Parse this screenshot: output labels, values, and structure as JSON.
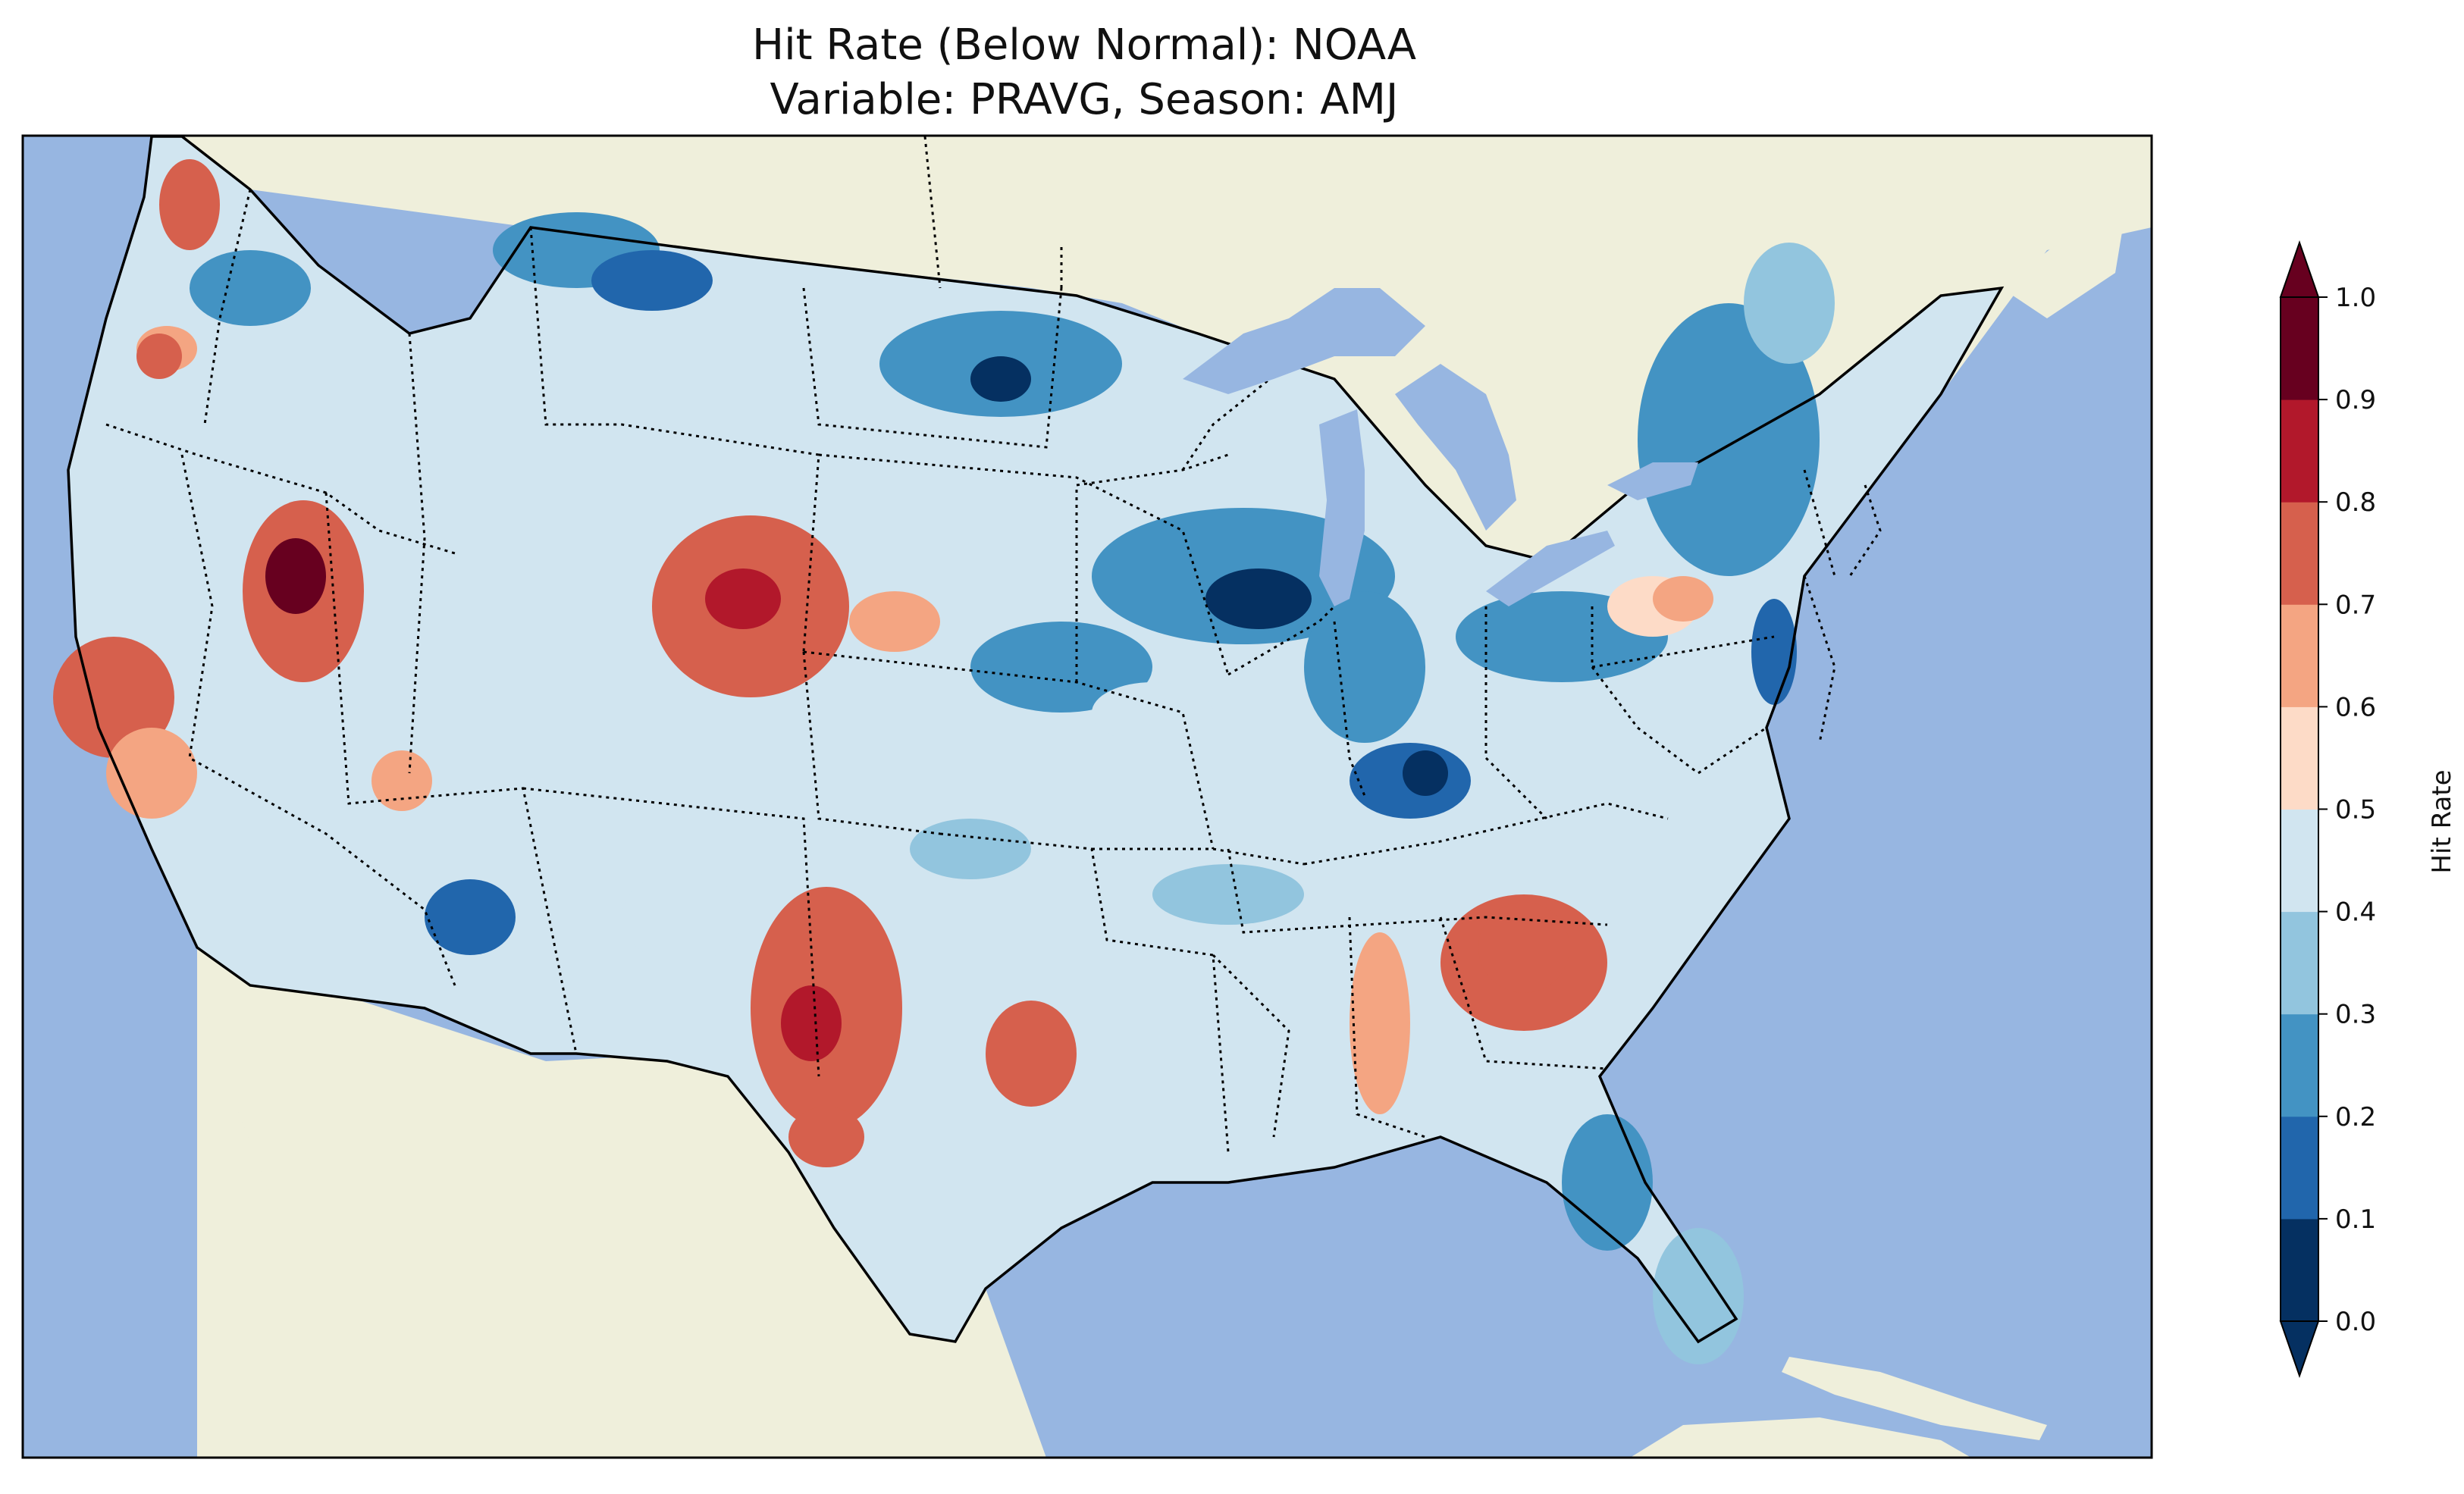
{
  "title": {
    "line1": "Hit Rate (Below Normal): NOAA",
    "line2": "Variable: PRAVG, Season: AMJ"
  },
  "colorbar": {
    "label": "Hit Rate",
    "ticks": [
      "0.0",
      "0.1",
      "0.2",
      "0.3",
      "0.4",
      "0.5",
      "0.6",
      "0.7",
      "0.8",
      "0.9",
      "1.0"
    ],
    "bins": [
      {
        "range": [
          0.0,
          0.1
        ],
        "color": "#053061"
      },
      {
        "range": [
          0.1,
          0.2
        ],
        "color": "#2166ac"
      },
      {
        "range": [
          0.2,
          0.3
        ],
        "color": "#4393c3"
      },
      {
        "range": [
          0.3,
          0.4
        ],
        "color": "#92c5de"
      },
      {
        "range": [
          0.4,
          0.5
        ],
        "color": "#d1e5f0"
      },
      {
        "range": [
          0.5,
          0.6
        ],
        "color": "#fddbc7"
      },
      {
        "range": [
          0.6,
          0.7
        ],
        "color": "#f4a582"
      },
      {
        "range": [
          0.7,
          0.8
        ],
        "color": "#d6604d"
      },
      {
        "range": [
          0.8,
          0.9
        ],
        "color": "#b2182b"
      },
      {
        "range": [
          0.9,
          1.0
        ],
        "color": "#67001f"
      }
    ],
    "extend": "both",
    "under_color": "#053061",
    "over_color": "#67001f"
  },
  "map": {
    "ocean_color": "#97b6e1",
    "land_color": "#efefdb",
    "lake_color": "#97b6e1",
    "border_color": "#000000"
  }
}
